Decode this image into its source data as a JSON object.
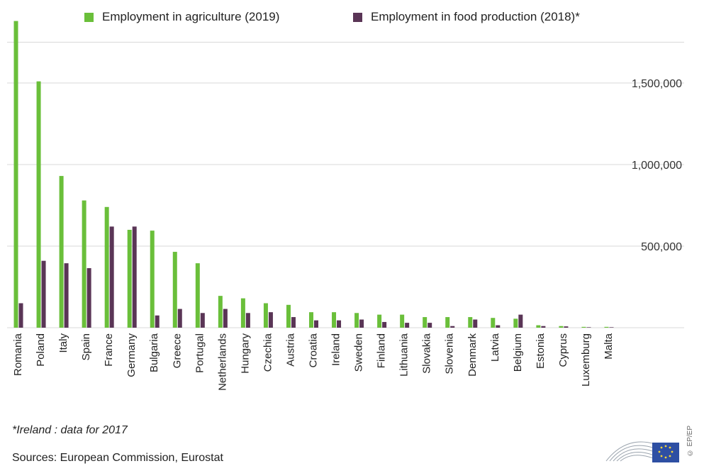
{
  "legend": {
    "agri": {
      "label": "Employment in agriculture (2019)",
      "color": "#6abf3a"
    },
    "food": {
      "label": "Employment in food production (2018)*",
      "color": "#5a3556"
    }
  },
  "note": "*Ireland : data for 2017",
  "sources": "Sources: European Commission, Eurostat",
  "logo_text": "© EP/EP",
  "chart_data": {
    "type": "bar",
    "categories": [
      "Romania",
      "Poland",
      "Italy",
      "Spain",
      "France",
      "Germany",
      "Bulgaria",
      "Greece",
      "Portugal",
      "Netherlands",
      "Hungary",
      "Czechia",
      "Austria",
      "Croatia",
      "Ireland",
      "Sweden",
      "Finland",
      "Lithuania",
      "Slovakia",
      "Slovenia",
      "Denmark",
      "Latvia",
      "Belgium",
      "Estonia",
      "Cyprus",
      "Luxemburg",
      "Malta"
    ],
    "series": [
      {
        "name": "Employment in agriculture (2019)",
        "color": "#6abf3a",
        "values": [
          1880000,
          1510000,
          930000,
          780000,
          740000,
          600000,
          595000,
          465000,
          395000,
          195000,
          180000,
          150000,
          140000,
          95000,
          95000,
          90000,
          80000,
          80000,
          65000,
          65000,
          65000,
          60000,
          55000,
          15000,
          10000,
          5000,
          5000
        ]
      },
      {
        "name": "Employment in food production (2018)*",
        "color": "#5a3556",
        "values": [
          150000,
          410000,
          395000,
          365000,
          620000,
          620000,
          75000,
          115000,
          90000,
          115000,
          90000,
          95000,
          65000,
          45000,
          45000,
          50000,
          35000,
          30000,
          30000,
          10000,
          50000,
          15000,
          80000,
          10000,
          8000,
          3000,
          3000
        ]
      }
    ],
    "yticks": [
      500000,
      1000000,
      1500000
    ],
    "ytick_labels": [
      "500,000",
      "1,000,000",
      "1,500,000"
    ],
    "ylim": [
      0,
      1900000
    ],
    "grid": true,
    "legend_position": "top"
  }
}
